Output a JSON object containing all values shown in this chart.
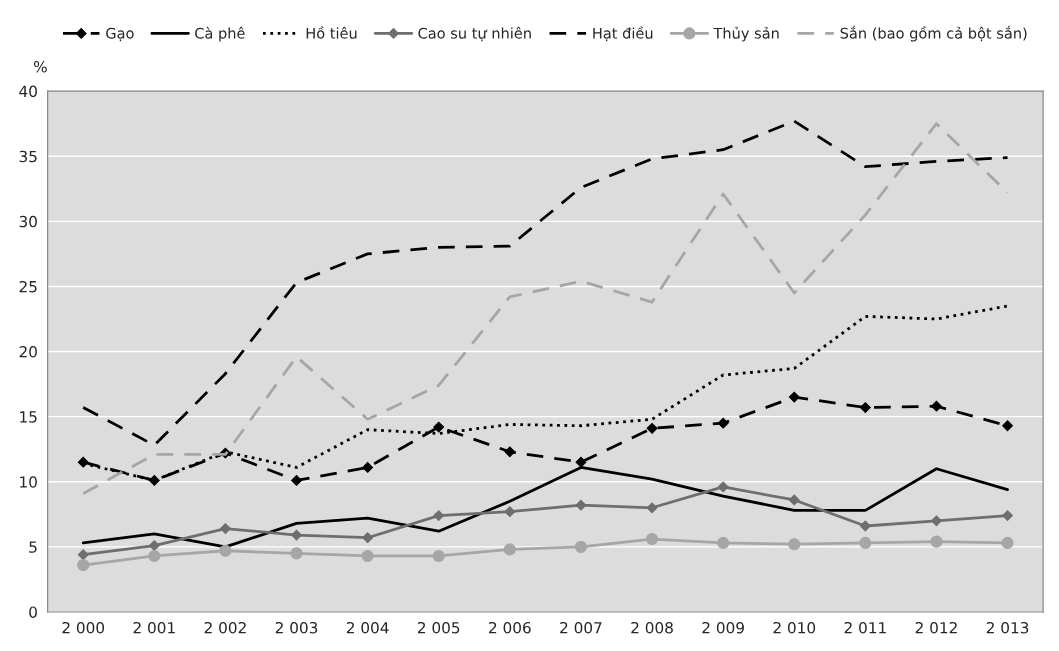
{
  "chart_data": {
    "type": "line",
    "ylabel": "%",
    "categories": [
      "2 000",
      "2 001",
      "2 002",
      "2 003",
      "2 004",
      "2 005",
      "2 006",
      "2 007",
      "2 008",
      "2 009",
      "2 010",
      "2 011",
      "2 012",
      "2 013"
    ],
    "series": [
      {
        "name": "Gạo",
        "color": "#000000",
        "marker": "diamond",
        "line_style": "dashed",
        "values": [
          11.5,
          10.1,
          12.2,
          10.1,
          11.1,
          14.2,
          12.3,
          11.5,
          14.1,
          14.5,
          16.5,
          15.7,
          15.8,
          14.3
        ]
      },
      {
        "name": "Cà phê",
        "color": "#000000",
        "marker": "none",
        "line_style": "solid",
        "values": [
          5.3,
          6.0,
          5.0,
          6.8,
          7.2,
          6.2,
          8.5,
          11.1,
          10.2,
          8.9,
          7.8,
          7.8,
          11.0,
          9.4
        ]
      },
      {
        "name": "Hồ tiêu",
        "color": "#000000",
        "marker": "none",
        "line_style": "dotted",
        "values": [
          11.4,
          10.1,
          12.3,
          11.1,
          14.0,
          13.7,
          14.4,
          14.3,
          14.8,
          18.2,
          18.7,
          22.7,
          22.5,
          23.5
        ]
      },
      {
        "name": "Cao su tự nhiên",
        "color": "#6e6e6e",
        "marker": "diamond",
        "line_style": "solid",
        "values": [
          4.4,
          5.1,
          6.4,
          5.9,
          5.7,
          7.4,
          7.7,
          8.2,
          8.0,
          9.6,
          8.6,
          6.6,
          7.0,
          7.4
        ]
      },
      {
        "name": "Hạt điều",
        "color": "#000000",
        "marker": "none",
        "line_style": "dashed",
        "values": [
          15.7,
          12.8,
          18.3,
          25.3,
          27.5,
          28.0,
          28.1,
          32.6,
          34.8,
          35.5,
          37.7,
          34.2,
          34.6,
          34.9
        ]
      },
      {
        "name": "Thủy sản",
        "color": "#a6a6a6",
        "marker": "circle",
        "line_style": "solid",
        "values": [
          3.6,
          4.3,
          4.7,
          4.5,
          4.3,
          4.3,
          4.8,
          5.0,
          5.6,
          5.3,
          5.2,
          5.3,
          5.4,
          5.3
        ]
      },
      {
        "name": "Sắn (bao gồm cả bột sắn)",
        "color": "#a6a6a6",
        "marker": "none",
        "line_style": "dashed",
        "values": [
          9.1,
          12.1,
          12.1,
          19.6,
          14.8,
          17.4,
          24.2,
          25.4,
          23.8,
          32.1,
          24.5,
          30.5,
          37.5,
          32.2
        ]
      }
    ],
    "ylim": [
      0,
      40
    ],
    "yticks": [
      0,
      5,
      10,
      15,
      20,
      25,
      30,
      35,
      40
    ],
    "grid": "y",
    "legend": "top"
  }
}
